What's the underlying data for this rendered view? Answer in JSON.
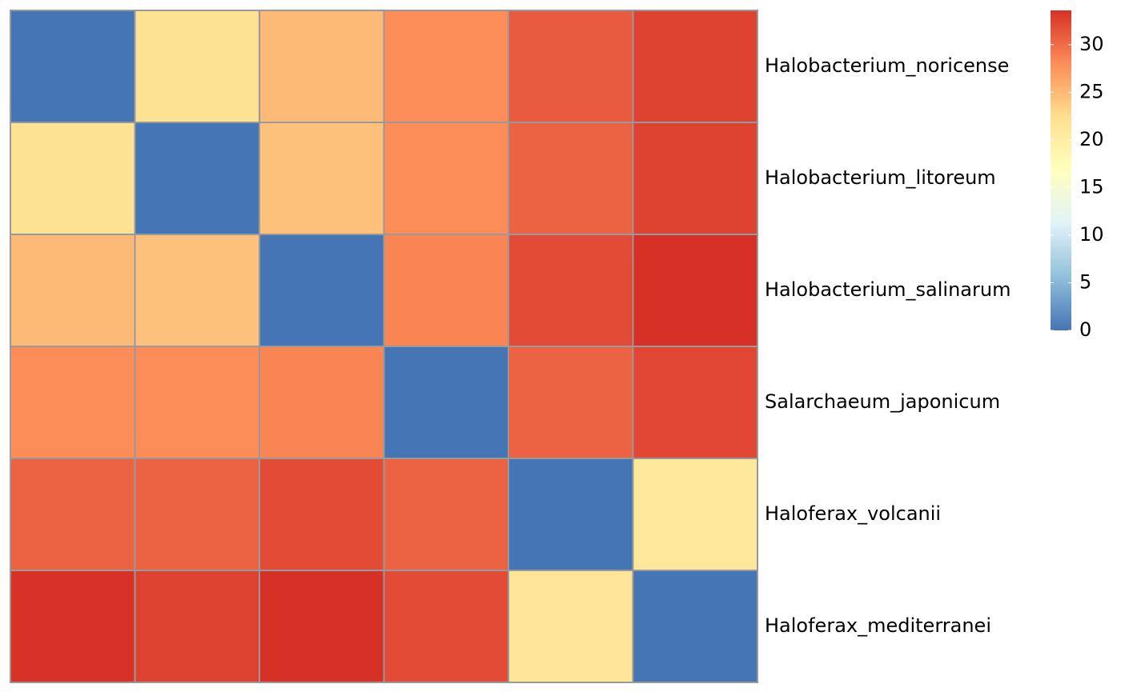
{
  "chart_data": {
    "type": "heatmap",
    "rows": [
      "Halobacterium_noricense",
      "Halobacterium_litoreum",
      "Halobacterium_salinarum",
      "Salarchaeum_japonicum",
      "Haloferax_volcanii",
      "Haloferax_mediterranei"
    ],
    "values": [
      [
        0,
        22,
        25,
        28,
        31,
        32.5
      ],
      [
        22,
        0,
        24.5,
        28,
        30.5,
        32.5
      ],
      [
        25,
        24.5,
        0,
        28.5,
        32,
        33.6
      ],
      [
        28,
        28,
        28.5,
        0,
        30.5,
        32.3
      ],
      [
        30.5,
        30.5,
        32,
        30.5,
        0,
        21
      ],
      [
        33.5,
        32.5,
        33.6,
        32,
        21.5,
        0
      ]
    ],
    "colors": [
      "#4575b4",
      "#91bfdb",
      "#e0f3f8",
      "#ffffbf",
      "#fee090",
      "#fc8d59",
      "#d73027"
    ],
    "zlim": [
      0,
      33.6
    ],
    "zticks": [
      0,
      5,
      10,
      15,
      20,
      25,
      30
    ],
    "border_color": "#999999"
  }
}
